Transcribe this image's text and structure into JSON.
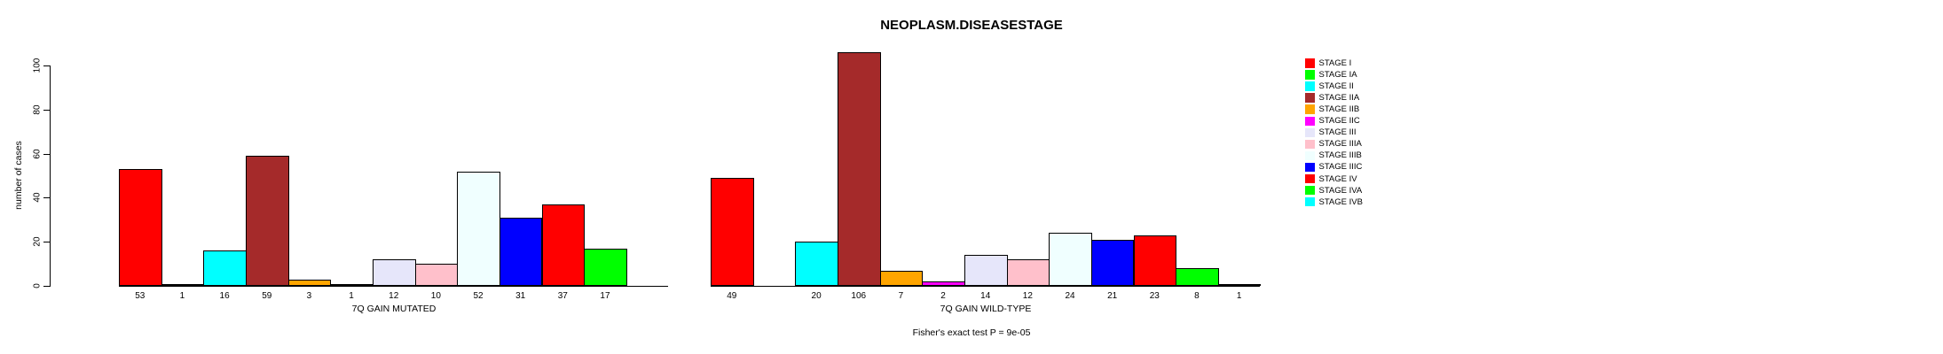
{
  "title": "NEOPLASM.DISEASESTAGE",
  "caption": "Fisher's exact test P = 9e-05",
  "y_axis": {
    "label": "number of cases",
    "ticks": [
      0,
      20,
      40,
      60,
      80,
      100
    ],
    "range": [
      0,
      100
    ]
  },
  "legend": {
    "position": "right",
    "items": [
      {
        "label": "STAGE I",
        "color": "#FF0000"
      },
      {
        "label": "STAGE IA",
        "color": "#00FF00"
      },
      {
        "label": "STAGE II",
        "color": "#00FFFF"
      },
      {
        "label": "STAGE IIA",
        "color": "#A52A2A"
      },
      {
        "label": "STAGE IIB",
        "color": "#FFA500"
      },
      {
        "label": "STAGE IIC",
        "color": "#FF00FF"
      },
      {
        "label": "STAGE III",
        "color": "#E6E6FA"
      },
      {
        "label": "STAGE IIIA",
        "color": "#FFC0CB"
      },
      {
        "label": "STAGE IIIB",
        "color": "#F0FFFF"
      },
      {
        "label": "STAGE IIIC",
        "color": "#0000FF"
      },
      {
        "label": "STAGE IV",
        "color": "#FF0000"
      },
      {
        "label": "STAGE IVA",
        "color": "#00FF00"
      },
      {
        "label": "STAGE IVB",
        "color": "#00FFFF"
      }
    ]
  },
  "chart_data": [
    {
      "type": "bar",
      "xlabel": "7Q GAIN MUTATED",
      "ylabel": "number of cases",
      "ylim": [
        0,
        100
      ],
      "grid": false,
      "categories": [
        "STAGE I",
        "STAGE IA",
        "STAGE II",
        "STAGE IIA",
        "STAGE IIB",
        "STAGE IIC",
        "STAGE III",
        "STAGE IIIA",
        "STAGE IIIB",
        "STAGE IIIC",
        "STAGE IV",
        "STAGE IVA",
        "STAGE IVB"
      ],
      "values": [
        53,
        1,
        16,
        59,
        3,
        1,
        12,
        10,
        52,
        31,
        37,
        17,
        0
      ],
      "bar_labels": [
        "53",
        "1",
        "16",
        "59",
        "3",
        "1",
        "12",
        "10",
        "52",
        "31",
        "37",
        "17",
        ""
      ],
      "colors": [
        "#FF0000",
        "#00FF00",
        "#00FFFF",
        "#A52A2A",
        "#FFA500",
        "#FF00FF",
        "#E6E6FA",
        "#FFC0CB",
        "#F0FFFF",
        "#0000FF",
        "#FF0000",
        "#00FF00",
        "#00FFFF"
      ]
    },
    {
      "type": "bar",
      "xlabel": "7Q GAIN WILD-TYPE",
      "ylabel": "number of cases",
      "ylim": [
        0,
        100
      ],
      "grid": false,
      "categories": [
        "STAGE I",
        "STAGE IA",
        "STAGE II",
        "STAGE IIA",
        "STAGE IIB",
        "STAGE IIC",
        "STAGE III",
        "STAGE IIIA",
        "STAGE IIIB",
        "STAGE IIIC",
        "STAGE IV",
        "STAGE IVA",
        "STAGE IVB"
      ],
      "values": [
        49,
        0,
        20,
        106,
        7,
        2,
        14,
        12,
        24,
        21,
        23,
        8,
        1
      ],
      "bar_labels": [
        "49",
        "",
        "20",
        "106",
        "7",
        "2",
        "14",
        "12",
        "24",
        "21",
        "23",
        "8",
        "1"
      ],
      "colors": [
        "#FF0000",
        "#00FF00",
        "#00FFFF",
        "#A52A2A",
        "#FFA500",
        "#FF00FF",
        "#E6E6FA",
        "#FFC0CB",
        "#F0FFFF",
        "#0000FF",
        "#FF0000",
        "#00FF00",
        "#00FFFF"
      ]
    }
  ]
}
